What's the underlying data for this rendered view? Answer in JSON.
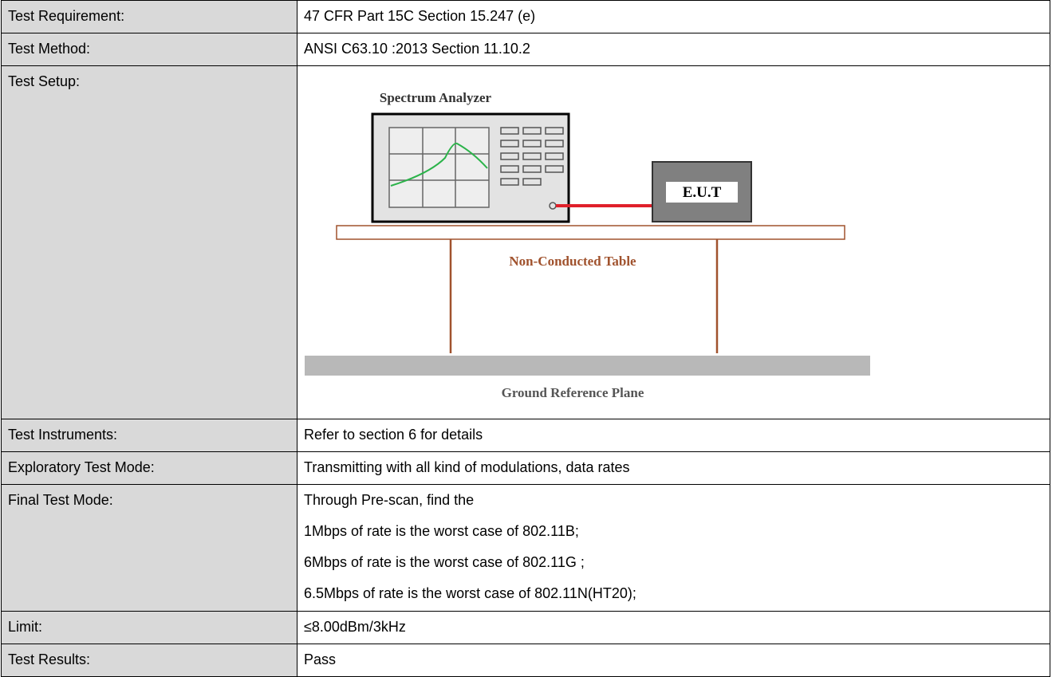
{
  "rows": [
    {
      "label": "Test Requirement:",
      "value": "47 CFR Part 15C Section 15.247 (e)"
    },
    {
      "label": "Test Method:",
      "value": "ANSI C63.10 :2013 Section 11.10.2"
    },
    {
      "label": "Test Setup:",
      "diagram": {
        "analyzer_label": "Spectrum Analyzer",
        "eut_label": "E.U.T",
        "table_label": "Non-Conducted Table",
        "ground_label": "Ground Reference Plane"
      }
    },
    {
      "label": "Test Instruments:",
      "value": "Refer to section 6 for details"
    },
    {
      "label": "Exploratory Test Mode:",
      "value": "Transmitting with all kind of modulations, data rates"
    },
    {
      "label": "Final Test Mode:",
      "lines": [
        "Through Pre-scan, find the",
        "1Mbps of rate is the worst case of 802.11B;",
        "6Mbps of rate is the worst case of 802.11G ;",
        "6.5Mbps of rate is the worst case of 802.11N(HT20);"
      ]
    },
    {
      "label": "Limit:",
      "value": "≤8.00dBm/3kHz"
    },
    {
      "label": "Test Results:",
      "value": "Pass"
    }
  ]
}
